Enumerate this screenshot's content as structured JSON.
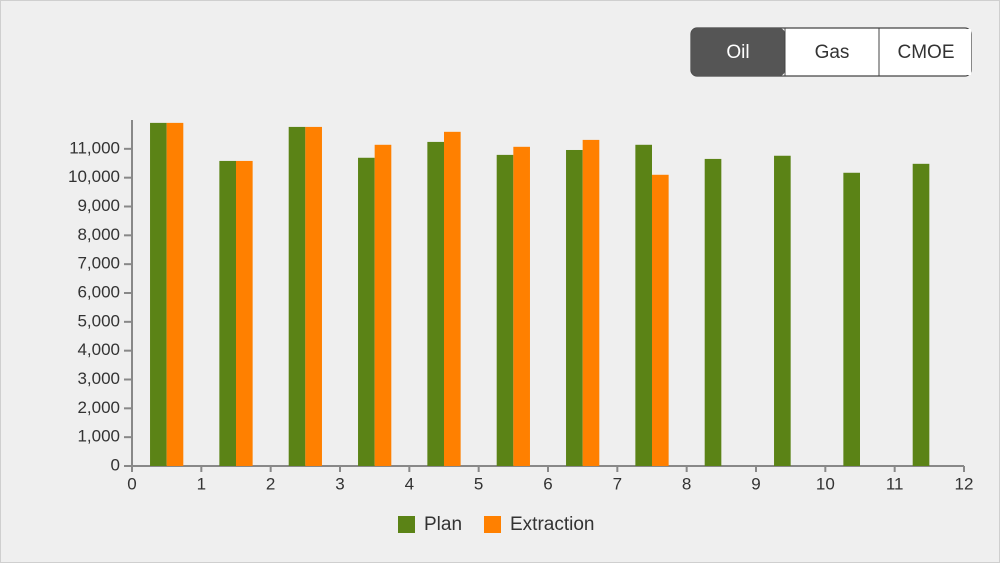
{
  "controls": {
    "options": [
      "Oil",
      "Gas",
      "CMOE"
    ],
    "selected_index": 0
  },
  "chart_data": {
    "type": "bar",
    "x": [
      0.5,
      1.5,
      2.5,
      3.5,
      4.5,
      5.5,
      6.5,
      7.5,
      8.5,
      9.5,
      10.5,
      11.5
    ],
    "series": [
      {
        "name": "Plan",
        "color": "#5b8316",
        "values": [
          11900,
          10580,
          11760,
          10690,
          11240,
          10790,
          10960,
          11140,
          10650,
          10760,
          10170,
          10480
        ]
      },
      {
        "name": "Extraction",
        "color": "#ff8000",
        "values": [
          11900,
          10580,
          11760,
          11140,
          11590,
          11070,
          11310,
          10100,
          null,
          null,
          null,
          null
        ]
      }
    ],
    "xlim": [
      0,
      12
    ],
    "xticks": [
      0,
      1,
      2,
      3,
      4,
      5,
      6,
      7,
      8,
      9,
      10,
      11,
      12
    ],
    "ylim": [
      0,
      12000
    ],
    "yticks": [
      0,
      {
        "value": 1000,
        "label": "1,000"
      },
      {
        "value": 2000,
        "label": "2,000"
      },
      {
        "value": 3000,
        "label": "3,000"
      },
      {
        "value": 4000,
        "label": "4,000"
      },
      {
        "value": 5000,
        "label": "5,000"
      },
      {
        "value": 6000,
        "label": "6,000"
      },
      {
        "value": 7000,
        "label": "7,000"
      },
      {
        "value": 8000,
        "label": "8,000"
      },
      {
        "value": 9000,
        "label": "9,000"
      },
      {
        "value": 10000,
        "label": "10,000"
      },
      {
        "value": 11000,
        "label": "11,000"
      }
    ],
    "legend": "bottom",
    "grid": false
  }
}
